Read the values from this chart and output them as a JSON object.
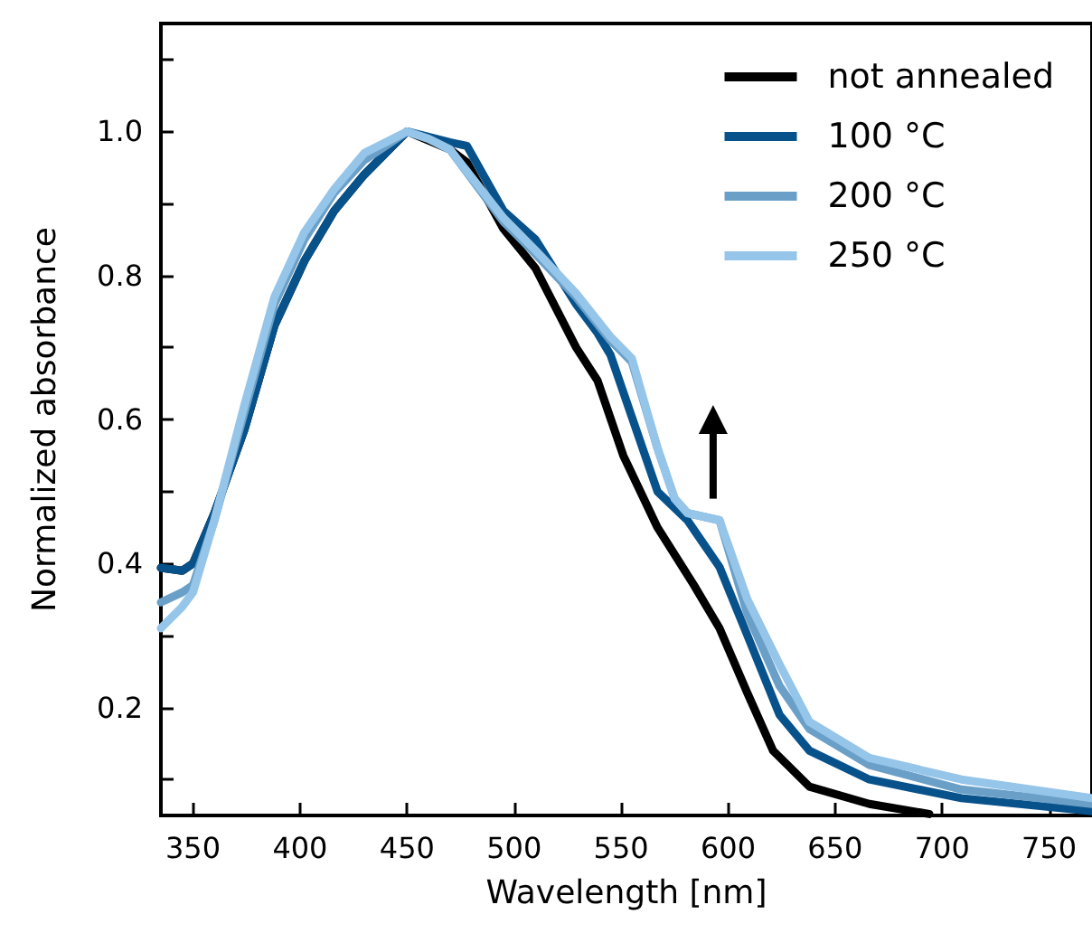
{
  "chart_data": {
    "type": "line",
    "xlabel": "Wavelength [nm]",
    "ylabel": "Normalized absorbance",
    "xlim": [
      335,
      770
    ],
    "ylim": [
      0.05,
      1.15
    ],
    "xticks": [
      350,
      400,
      450,
      500,
      550,
      600,
      650,
      700,
      750
    ],
    "yticks": [
      {
        "value": 0.1,
        "label": null
      },
      0.2,
      {
        "value": 0.3,
        "label": null
      },
      0.4,
      {
        "value": 0.5,
        "label": null
      },
      0.6,
      {
        "value": 0.7,
        "label": null
      },
      0.8,
      {
        "value": 0.9,
        "label": null
      },
      {
        "value": 1.0,
        "label": "1.0"
      },
      {
        "value": 1.1,
        "label": null
      }
    ],
    "grid": false,
    "legend": "top right",
    "marker": "none",
    "line_style": "solid",
    "series": [
      {
        "name": "not annealed",
        "color": "#000000",
        "x": [
          335,
          345,
          350,
          360,
          374,
          388,
          402,
          416,
          430,
          450,
          470,
          478,
          495,
          510,
          529,
          539,
          551,
          567,
          584,
          596,
          609,
          621,
          638,
          666,
          694
        ],
        "values": [
          0.394,
          0.39,
          0.4,
          0.47,
          0.586,
          0.73,
          0.82,
          0.89,
          0.94,
          1.0,
          0.975,
          0.957,
          0.865,
          0.81,
          0.7,
          0.654,
          0.55,
          0.45,
          0.37,
          0.31,
          0.22,
          0.14,
          0.09,
          0.066,
          0.052
        ]
      },
      {
        "name": "100 °C",
        "color": "#08528c",
        "x": [
          335,
          345,
          350,
          360,
          374,
          388,
          402,
          416,
          430,
          450,
          470,
          478,
          495,
          510,
          529,
          539,
          545,
          567,
          581,
          596,
          609,
          624,
          638,
          666,
          709,
          770
        ],
        "values": [
          0.394,
          0.39,
          0.4,
          0.47,
          0.586,
          0.73,
          0.82,
          0.89,
          0.94,
          1.0,
          0.985,
          0.98,
          0.89,
          0.85,
          0.76,
          0.72,
          0.69,
          0.5,
          0.46,
          0.395,
          0.3,
          0.19,
          0.14,
          0.1,
          0.074,
          0.056
        ]
      },
      {
        "name": "200 °C",
        "color": "#6aa0c8",
        "x": [
          335,
          345,
          350,
          360,
          374,
          388,
          402,
          416,
          430,
          450,
          460,
          470,
          495,
          510,
          529,
          545,
          555,
          567,
          575,
          581,
          596,
          609,
          624,
          638,
          666,
          709,
          770
        ],
        "values": [
          0.346,
          0.36,
          0.37,
          0.46,
          0.61,
          0.76,
          0.85,
          0.915,
          0.96,
          1.0,
          0.99,
          0.975,
          0.875,
          0.83,
          0.77,
          0.71,
          0.68,
          0.56,
          0.49,
          0.47,
          0.46,
          0.33,
          0.23,
          0.17,
          0.12,
          0.086,
          0.066
        ]
      },
      {
        "name": "250 °C",
        "color": "#96c5ea",
        "x": [
          335,
          345,
          350,
          360,
          374,
          388,
          402,
          416,
          430,
          450,
          460,
          470,
          495,
          510,
          529,
          545,
          555,
          567,
          575,
          581,
          596,
          609,
          624,
          638,
          666,
          709,
          770
        ],
        "values": [
          0.31,
          0.34,
          0.36,
          0.46,
          0.62,
          0.77,
          0.86,
          0.92,
          0.97,
          1.0,
          0.99,
          0.975,
          0.88,
          0.835,
          0.775,
          0.715,
          0.685,
          0.56,
          0.49,
          0.47,
          0.46,
          0.35,
          0.26,
          0.18,
          0.13,
          0.1,
          0.074
        ]
      }
    ]
  }
}
